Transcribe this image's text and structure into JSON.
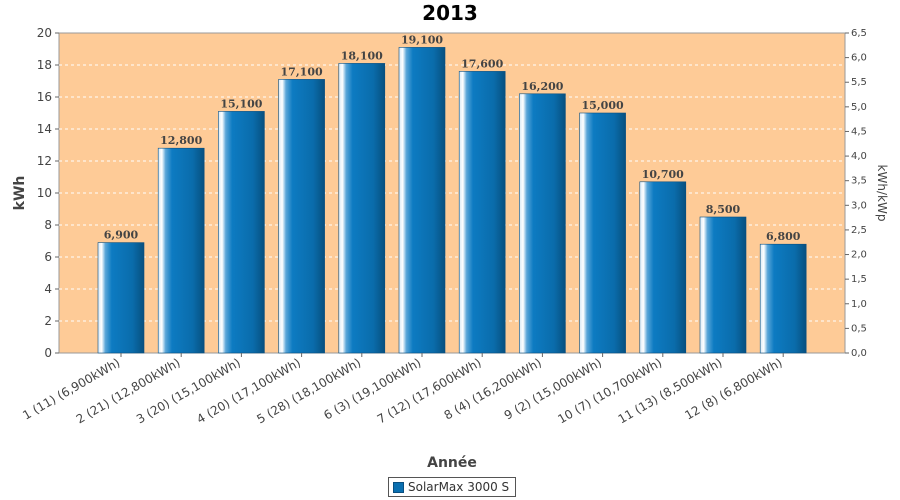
{
  "chart_data": {
    "type": "bar",
    "title": "2013",
    "xlabel": "Année",
    "ylabel": "kWh",
    "ylabel_right": "kWh/kWp",
    "ylim": [
      0,
      20
    ],
    "ylim_right": [
      0.0,
      6.5
    ],
    "yticks": [
      "0",
      "2",
      "4",
      "6",
      "8",
      "10",
      "12",
      "14",
      "16",
      "18",
      "20"
    ],
    "yticks_right": [
      "0,0",
      "0,5",
      "1,0",
      "1,5",
      "2,0",
      "2,5",
      "3,0",
      "3,5",
      "4,0",
      "4,5",
      "5,0",
      "5,5",
      "6,0",
      "6,5"
    ],
    "categories": [
      "1 (11)  (6,900kWh)",
      "2 (21)  (12,800kWh)",
      "3 (20)  (15,100kWh)",
      "4 (20)  (17,100kWh)",
      "5 (28)  (18,100kWh)",
      "6 (3)  (19,100kWh)",
      "7 (12)  (17,600kWh)",
      "8 (4)  (16,200kWh)",
      "9 (2)  (15,000kWh)",
      "10 (7)  (10,700kWh)",
      "11 (13)  (8,500kWh)",
      "12 (8)  (6,800kWh)"
    ],
    "series": [
      {
        "name": "SolarMax 3000 S",
        "values": [
          6.9,
          12.8,
          15.1,
          17.1,
          18.1,
          19.1,
          17.6,
          16.2,
          15.0,
          10.7,
          8.5,
          6.8
        ],
        "labels": [
          "6,900",
          "12,800",
          "15,100",
          "17,100",
          "18,100",
          "19,100",
          "17,600",
          "16,200",
          "15,000",
          "10,700",
          "8,500",
          "6,800"
        ]
      }
    ],
    "grid": true,
    "legend": "bottom",
    "colors": {
      "plot_background": "#fecb97",
      "bar": "#0a6fb0",
      "grid": "#ffffff"
    }
  }
}
